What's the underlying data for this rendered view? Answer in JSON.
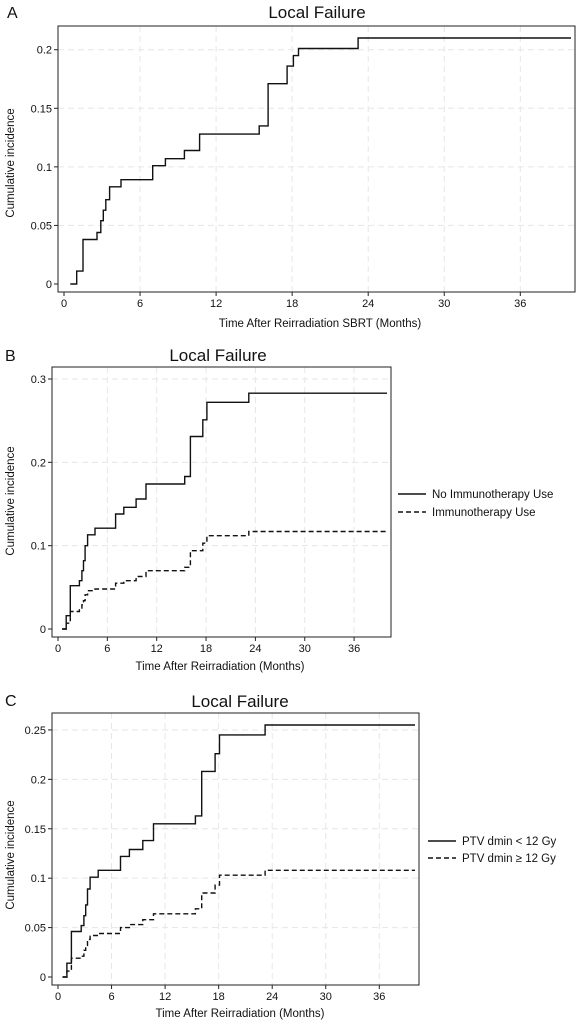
{
  "chart_data": [
    {
      "panel": "A",
      "type": "line",
      "step": true,
      "title": "Local Failure",
      "xlabel": "Time After Reirradiation SBRT (Months)",
      "ylabel": "Cumulative incidence",
      "xlim": [
        0,
        40
      ],
      "ylim": [
        0,
        0.21
      ],
      "x_ticks": [
        0,
        6,
        12,
        18,
        24,
        30,
        36
      ],
      "y_ticks": [
        0,
        0.05,
        0.1,
        0.15,
        0.2
      ],
      "y_tick_labels": [
        "0",
        "0.05",
        "0.1",
        "0.15",
        "0.2"
      ],
      "grid": true,
      "legend": null,
      "series": [
        {
          "style": "solid",
          "x": [
            0.5,
            1.0,
            1.5,
            2.6,
            2.9,
            3.1,
            3.3,
            3.6,
            4.5,
            7.0,
            8.0,
            9.5,
            10.7,
            15.4,
            16.1,
            17.6,
            18.1,
            18.5,
            23.2,
            40
          ],
          "y": [
            0,
            0.011,
            0.038,
            0.044,
            0.054,
            0.063,
            0.072,
            0.083,
            0.089,
            0.101,
            0.107,
            0.114,
            0.128,
            0.135,
            0.171,
            0.186,
            0.195,
            0.201,
            0.21,
            0.21
          ]
        }
      ]
    },
    {
      "panel": "B",
      "type": "line",
      "step": true,
      "title": "Local Failure",
      "xlabel": "Time After Reirradiation (Months)",
      "ylabel": "Cumulative incidence",
      "xlim": [
        0,
        40
      ],
      "ylim": [
        0,
        0.3
      ],
      "x_ticks": [
        0,
        6,
        12,
        18,
        24,
        30,
        36
      ],
      "y_ticks": [
        0,
        0.1,
        0.2,
        0.3
      ],
      "y_tick_labels": [
        "0",
        "0.1",
        "0.2",
        "0.3"
      ],
      "grid": true,
      "legend": "right",
      "series": [
        {
          "name": "No Immunotherapy Use",
          "style": "solid",
          "x": [
            0.5,
            1.0,
            1.5,
            2.6,
            2.9,
            3.1,
            3.3,
            3.6,
            4.5,
            7.0,
            8.0,
            9.5,
            10.7,
            15.4,
            16.1,
            17.6,
            18.1,
            23.2,
            40
          ],
          "y": [
            0,
            0.016,
            0.052,
            0.058,
            0.07,
            0.082,
            0.1,
            0.113,
            0.121,
            0.138,
            0.146,
            0.156,
            0.174,
            0.183,
            0.231,
            0.251,
            0.272,
            0.283,
            0.283
          ]
        },
        {
          "name": "Immunotherapy Use",
          "style": "dashed",
          "x": [
            0.5,
            1.0,
            1.5,
            2.6,
            2.9,
            3.1,
            3.3,
            3.6,
            4.5,
            7.0,
            8.0,
            9.5,
            10.7,
            15.4,
            16.1,
            17.6,
            18.1,
            23.2,
            40
          ],
          "y": [
            0,
            0.007,
            0.021,
            0.023,
            0.029,
            0.034,
            0.041,
            0.046,
            0.048,
            0.055,
            0.058,
            0.063,
            0.07,
            0.074,
            0.094,
            0.103,
            0.112,
            0.117,
            0.117
          ]
        }
      ]
    },
    {
      "panel": "C",
      "type": "line",
      "step": true,
      "title": "Local Failure",
      "xlabel": "Time After Reirradiation (Months)",
      "ylabel": "Cumulative incidence",
      "xlim": [
        0,
        40
      ],
      "ylim": [
        0,
        0.255
      ],
      "x_ticks": [
        0,
        6,
        12,
        18,
        24,
        30,
        36
      ],
      "y_ticks": [
        0,
        0.05,
        0.1,
        0.15,
        0.2,
        0.25
      ],
      "y_tick_labels": [
        "0",
        "0.05",
        "0.1",
        "0.15",
        "0.2",
        "0.25"
      ],
      "grid": true,
      "legend": "right",
      "series": [
        {
          "name": "PTV dmin < 12 Gy",
          "style": "solid",
          "x": [
            0.5,
            1.0,
            1.5,
            2.6,
            2.9,
            3.1,
            3.3,
            3.6,
            4.5,
            7.0,
            8.0,
            9.5,
            10.7,
            15.4,
            16.1,
            17.6,
            18.1,
            23.2,
            40
          ],
          "y": [
            0,
            0.014,
            0.046,
            0.052,
            0.062,
            0.073,
            0.089,
            0.101,
            0.108,
            0.122,
            0.129,
            0.138,
            0.155,
            0.163,
            0.208,
            0.226,
            0.245,
            0.255,
            0.255
          ]
        },
        {
          "name": "PTV dmin ≥ 12 Gy",
          "style": "dashed",
          "x": [
            0.5,
            1.0,
            1.5,
            2.6,
            2.9,
            3.1,
            3.3,
            3.6,
            4.5,
            7.0,
            8.0,
            9.5,
            10.7,
            15.4,
            16.1,
            17.6,
            18.1,
            23.2,
            40
          ],
          "y": [
            0,
            0.006,
            0.019,
            0.021,
            0.027,
            0.032,
            0.038,
            0.042,
            0.044,
            0.05,
            0.053,
            0.058,
            0.064,
            0.069,
            0.085,
            0.093,
            0.103,
            0.108,
            0.108
          ]
        }
      ]
    }
  ]
}
